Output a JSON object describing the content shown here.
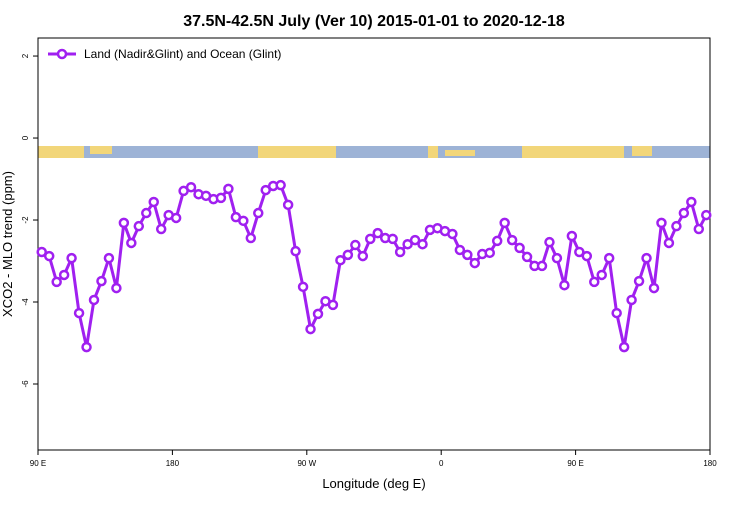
{
  "chart_data": {
    "type": "line",
    "title": "37.5N-42.5N July (Ver 10)   2015-01-01 to 2020-12-18",
    "x_label": "Longitude (deg E)",
    "y_label": "XCO2 - MLO trend (ppm)",
    "x": [
      92.5,
      97.5,
      102.5,
      107.5,
      112.5,
      117.5,
      122.5,
      127.5,
      132.5,
      137.5,
      142.5,
      147.5,
      152.5,
      157.5,
      162.5,
      167.5,
      172.5,
      177.5,
      182.5,
      187.5,
      192.5,
      197.5,
      202.5,
      207.5,
      212.5,
      217.5,
      222.5,
      227.5,
      232.5,
      237.5,
      242.5,
      247.5,
      252.5,
      257.5,
      262.5,
      267.5,
      272.5,
      277.5,
      282.5,
      287.5,
      292.5,
      297.5,
      302.5,
      307.5,
      312.5,
      317.5,
      322.5,
      327.5,
      332.5,
      337.5,
      342.5,
      347.5,
      352.5,
      357.5,
      362.5,
      367.5,
      372.5,
      377.5,
      382.5,
      387.5,
      392.5,
      397.5,
      402.5,
      407.5,
      412.5,
      417.5,
      422.5,
      427.5,
      432.5,
      437.5,
      442.5,
      447.5,
      452.5,
      457.5,
      462.5,
      467.5,
      472.5,
      477.5,
      482.5,
      487.5,
      492.5,
      497.5,
      502.5,
      507.5,
      512.5,
      517.5,
      522.5,
      527.5,
      532.5,
      537.5
    ],
    "series": [
      {
        "name": "Land (Nadir&Glint) and Ocean (Glint)",
        "color": "#a020f0",
        "values": [
          -2.78,
          -2.88,
          -3.51,
          -3.34,
          -2.93,
          -4.27,
          -5.1,
          -3.95,
          -3.49,
          -2.93,
          -3.66,
          -2.07,
          -2.56,
          -2.15,
          -1.83,
          -1.56,
          -2.22,
          -1.88,
          -1.95,
          -1.29,
          -1.2,
          -1.37,
          -1.41,
          -1.49,
          -1.46,
          -1.24,
          -1.93,
          -2.02,
          -2.44,
          -1.83,
          -1.27,
          -1.17,
          -1.15,
          -1.63,
          -2.76,
          -3.63,
          -4.66,
          -4.29,
          -3.98,
          -4.07,
          -2.98,
          -2.85,
          -2.61,
          -2.88,
          -2.46,
          -2.32,
          -2.44,
          -2.46,
          -2.78,
          -2.59,
          -2.49,
          -2.59,
          -2.24,
          -2.2,
          -2.27,
          -2.34,
          -2.73,
          -2.85,
          -3.05,
          -2.83,
          -2.8,
          -2.51,
          -2.07,
          -2.49,
          -2.68,
          -2.9,
          -3.12,
          -3.12,
          -2.54,
          -2.93,
          -3.59,
          -2.39,
          -2.78,
          -2.88,
          -3.51,
          -3.34,
          -2.93,
          -4.27,
          -5.1,
          -3.95,
          -3.49,
          -2.93,
          -3.66,
          -2.07,
          -2.56,
          -2.15,
          -1.83,
          -1.56,
          -2.22,
          -1.88
        ]
      }
    ],
    "xlim": [
      90,
      540
    ],
    "xticks": [
      {
        "value": 90,
        "label": "90 E"
      },
      {
        "value": 180,
        "label": "180"
      },
      {
        "value": 270,
        "label": "90 W"
      },
      {
        "value": 360,
        "label": "0"
      },
      {
        "value": 450,
        "label": "90 E"
      },
      {
        "value": 540,
        "label": "180"
      }
    ],
    "ylim": [
      -7.61,
      2.44
    ],
    "yticks": [
      2,
      0,
      -2,
      -4,
      -6
    ],
    "legend": "top-left"
  }
}
